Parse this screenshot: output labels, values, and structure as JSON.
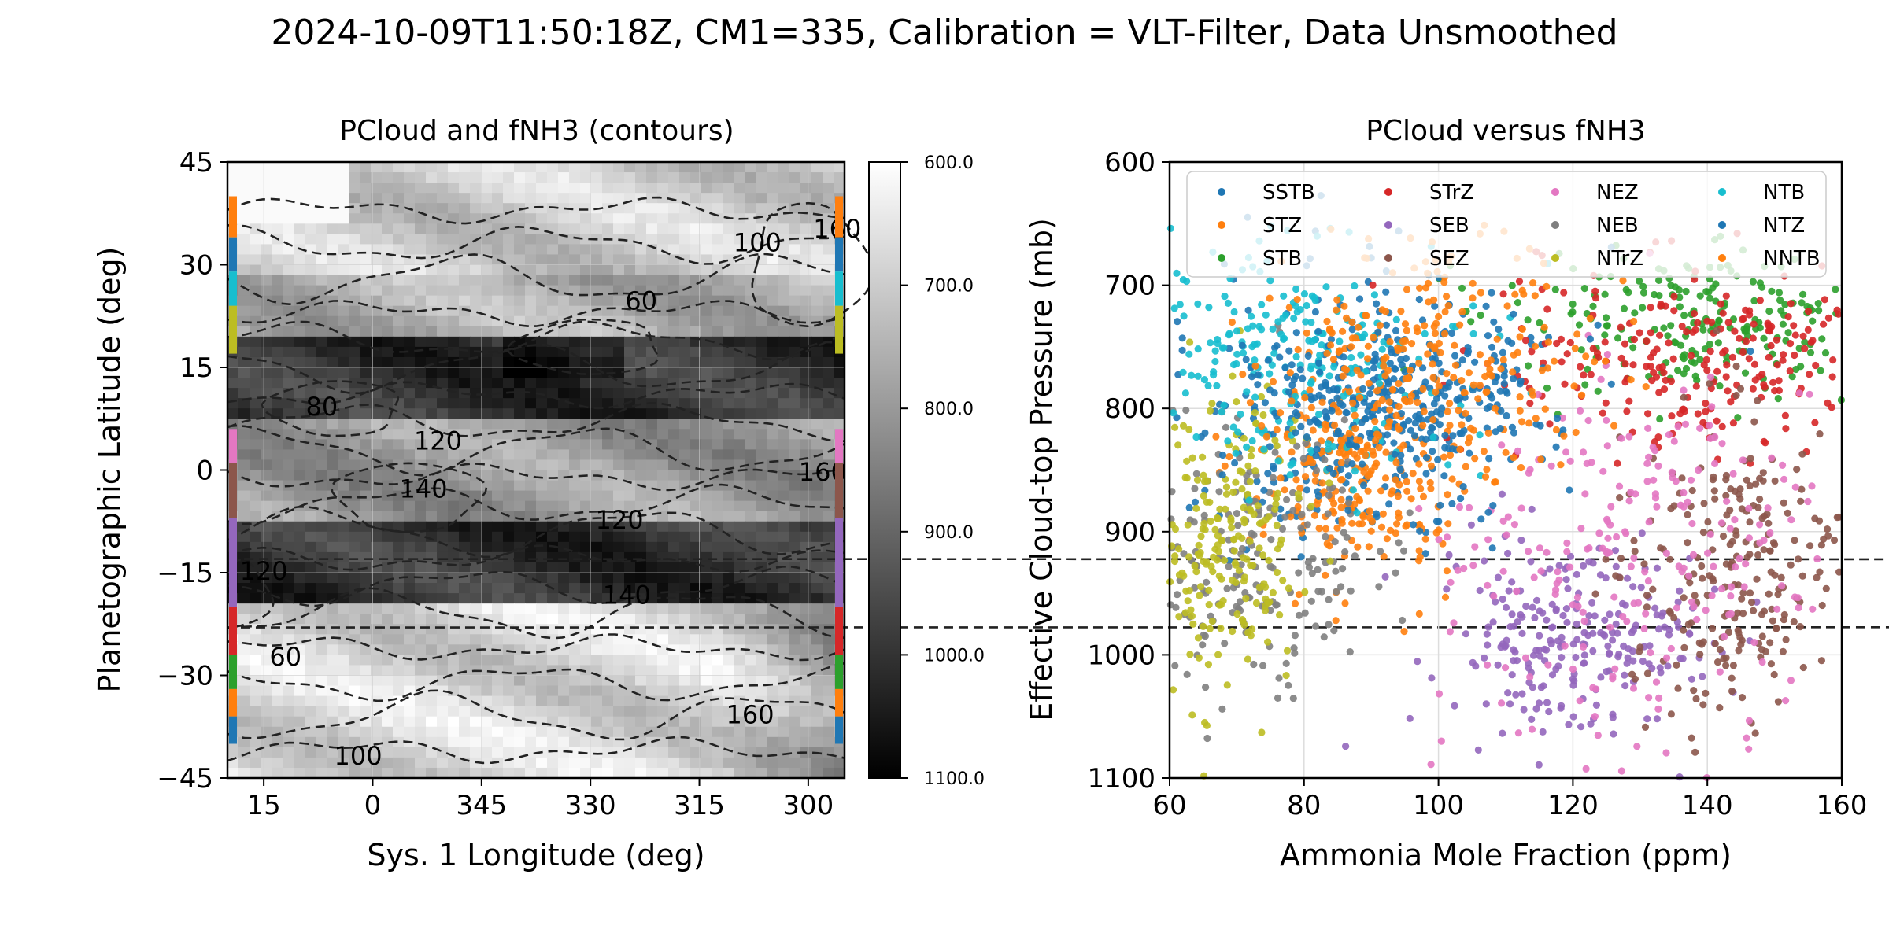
{
  "suptitle": "2024-10-09T11:50:18Z, CM1=335, Calibration = VLT-Filter, Data Unsmoothed",
  "chart_data": [
    {
      "type": "heatmap",
      "title": "PCloud and fNH3 (contours)",
      "xlabel": "Sys. 1 Longitude (deg)",
      "ylabel": "Planetographic Latitude (deg)",
      "xlim": [
        20,
        295
      ],
      "ylim": [
        -45,
        45
      ],
      "x_ticks": [
        "15",
        "0",
        "345",
        "330",
        "315",
        "300"
      ],
      "x_tick_values": [
        15,
        0,
        345,
        330,
        315,
        300
      ],
      "y_ticks": [
        "45",
        "30",
        "15",
        "0",
        "−15",
        "−30",
        "−45"
      ],
      "y_tick_values": [
        45,
        30,
        15,
        0,
        -15,
        -30,
        -45
      ],
      "grid": true,
      "colormap": "gray",
      "colorbar": {
        "range": [
          600,
          1100
        ],
        "ticks": [
          "600.0",
          "700.0",
          "800.0",
          "900.0",
          "1000.0",
          "1100.0"
        ],
        "tick_values": [
          600,
          700,
          800,
          900,
          1000,
          1100
        ]
      },
      "latitude_bands": [
        {
          "lat": [
            -16,
            45
          ],
          "value": 700
        },
        {
          "lat": [
            16,
            28
          ],
          "value": 760
        },
        {
          "lat": [
            8,
            20
          ],
          "value": 1000
        },
        {
          "lat": [
            -8,
            8
          ],
          "value": 800
        },
        {
          "lat": [
            -20,
            -8
          ],
          "value": 1000
        },
        {
          "lat": [
            -45,
            -20
          ],
          "value": 680
        }
      ],
      "contour_labels": [
        {
          "text": "60",
          "lon": 323,
          "lat": 24.5
        },
        {
          "text": "100",
          "lon": 307,
          "lat": 33
        },
        {
          "text": "160",
          "lon": 296,
          "lat": 35
        },
        {
          "text": "80",
          "lon": 7,
          "lat": 9
        },
        {
          "text": "120",
          "lon": 351,
          "lat": 4
        },
        {
          "text": "140",
          "lon": 353,
          "lat": -3
        },
        {
          "text": "160",
          "lon": 298,
          "lat": -0.5
        },
        {
          "text": "120",
          "lon": 326,
          "lat": -7.5
        },
        {
          "text": "120",
          "lon": 15,
          "lat": -15
        },
        {
          "text": "140",
          "lon": 325,
          "lat": -18.5
        },
        {
          "text": "60",
          "lon": 12,
          "lat": -27.5
        },
        {
          "text": "160",
          "lon": 308,
          "lat": -36
        },
        {
          "text": "100",
          "lon": 2,
          "lat": -42
        }
      ],
      "belt_markers_left": [
        {
          "color": "#ff7f0e",
          "lat": [
            34,
            40
          ]
        },
        {
          "color": "#1f77b4",
          "lat": [
            29,
            34
          ]
        },
        {
          "color": "#17becf",
          "lat": [
            24,
            29
          ]
        },
        {
          "color": "#bcbd22",
          "lat": [
            17,
            24
          ]
        },
        {
          "color": "#e377c2",
          "lat": [
            1,
            6
          ]
        },
        {
          "color": "#8c564b",
          "lat": [
            -7,
            1
          ]
        },
        {
          "color": "#9467bd",
          "lat": [
            -20,
            -7
          ]
        },
        {
          "color": "#d62728",
          "lat": [
            -27,
            -20
          ]
        },
        {
          "color": "#2ca02c",
          "lat": [
            -32,
            -27
          ]
        },
        {
          "color": "#ff7f0e",
          "lat": [
            -36,
            -32
          ]
        },
        {
          "color": "#1f77b4",
          "lat": [
            -40,
            -36
          ]
        }
      ]
    },
    {
      "type": "scatter",
      "title": "PCloud versus fNH3",
      "xlabel": "Ammonia Mole Fraction (ppm)",
      "ylabel": "Effective Cloud-top Pressure (mb)",
      "xlim": [
        60,
        160
      ],
      "ylim": [
        1100,
        600
      ],
      "x_ticks": [
        60,
        80,
        100,
        120,
        140,
        160
      ],
      "y_ticks": [
        600,
        700,
        800,
        900,
        1000,
        1100
      ],
      "grid": true,
      "legend_position": "top",
      "series": [
        {
          "name": "SSTB",
          "color": "#1f77b4",
          "cx": 88,
          "cy": 800,
          "sx": 12,
          "sy": 55
        },
        {
          "name": "STZ",
          "color": "#ff7f0e",
          "cx": 88,
          "cy": 850,
          "sx": 8,
          "sy": 45
        },
        {
          "name": "STB",
          "color": "#2ca02c",
          "cx": 140,
          "cy": 730,
          "sx": 15,
          "sy": 30
        },
        {
          "name": "STrZ",
          "color": "#d62728",
          "cx": 140,
          "cy": 760,
          "sx": 15,
          "sy": 40
        },
        {
          "name": "SEB",
          "color": "#9467bd",
          "cx": 120,
          "cy": 990,
          "sx": 10,
          "sy": 40
        },
        {
          "name": "SEZ",
          "color": "#8c564b",
          "cx": 143,
          "cy": 930,
          "sx": 8,
          "sy": 65
        },
        {
          "name": "NEZ",
          "color": "#e377c2",
          "cx": 130,
          "cy": 920,
          "sx": 15,
          "sy": 80
        },
        {
          "name": "NEB",
          "color": "#7f7f7f",
          "cx": 70,
          "cy": 920,
          "sx": 10,
          "sy": 60
        },
        {
          "name": "NTrZ",
          "color": "#bcbd22",
          "cx": 68,
          "cy": 900,
          "sx": 7,
          "sy": 60
        },
        {
          "name": "NTB",
          "color": "#17becf",
          "cx": 78,
          "cy": 760,
          "sx": 12,
          "sy": 45
        },
        {
          "name": "NTZ",
          "color": "#1f77b4",
          "cx": 95,
          "cy": 790,
          "sx": 12,
          "sy": 40
        },
        {
          "name": "NNTB",
          "color": "#ff7f0e",
          "cx": 100,
          "cy": 760,
          "sx": 12,
          "sy": 45
        }
      ]
    }
  ]
}
